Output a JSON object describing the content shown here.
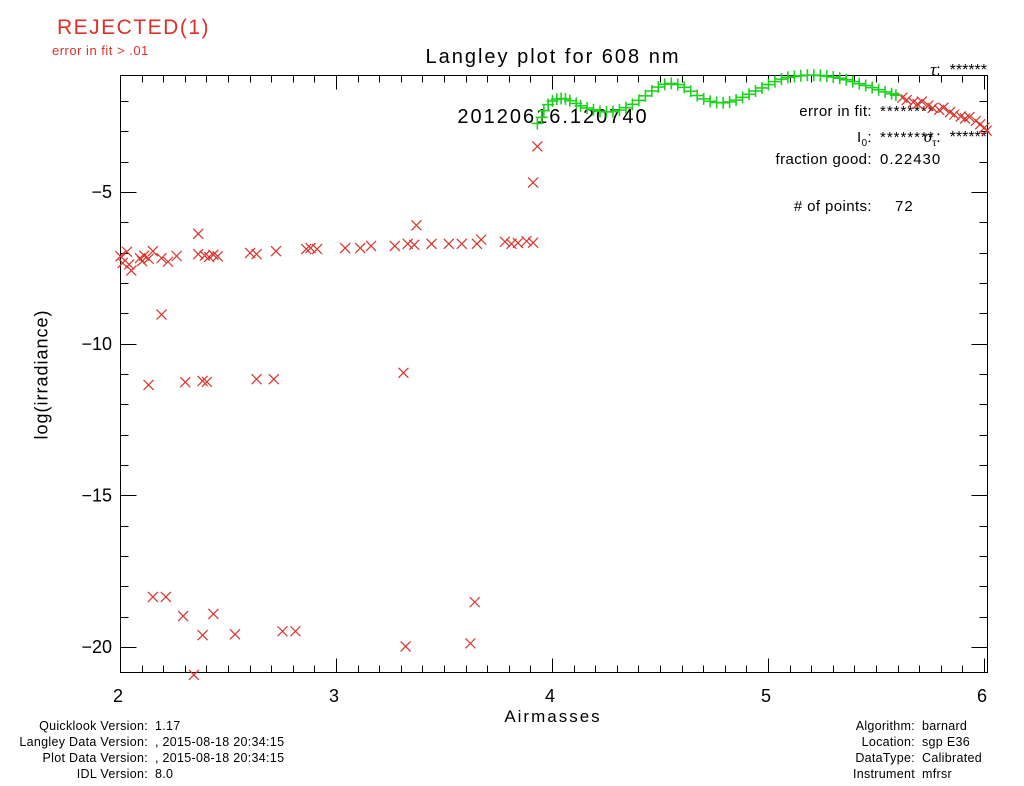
{
  "header": {
    "rejected_label": "REJECTED(1)",
    "rejected_reason": "error in fit > .01",
    "title_line1": "Langley plot for 608 nm",
    "title_line2": "20120616.120740"
  },
  "tau_block": {
    "tau_symbol": "τ",
    "tau_colon": ":  ",
    "tau_value": "******",
    "sigma_symbol": "σ",
    "sigma_sub": "τ",
    "sigma_colon": ":  ",
    "sigma_value": "******"
  },
  "stats": {
    "error_label": "error in fit:",
    "error_value": "********",
    "i0_main": "I",
    "i0_sub": "0",
    "i0_colon": ":",
    "i0_value": "********",
    "fraction_label": "fraction good:",
    "fraction_value": "0.22430",
    "points_label": "# of points:",
    "points_value": "72"
  },
  "footer_left": {
    "rows": [
      {
        "label": "Quicklook Version:",
        "value": "1.17"
      },
      {
        "label": "Langley Data Version:",
        "value": ", 2015-08-18 20:34:15"
      },
      {
        "label": "Plot Data Version:",
        "value": ", 2015-08-18 20:34:15"
      },
      {
        "label": "IDL Version:",
        "value": "8.0"
      }
    ]
  },
  "footer_right": {
    "rows": [
      {
        "label": "Algorithm:",
        "value": "barnard"
      },
      {
        "label": "Location:",
        "value": "sgp E36"
      },
      {
        "label": "DataType:",
        "value": "Calibrated"
      },
      {
        "label": "Instrument",
        "value": "mfrsr"
      }
    ]
  },
  "chart_data": {
    "type": "scatter",
    "title": "Langley plot for 608 nm 20120616.120740",
    "xlabel": "Airmasses",
    "ylabel": "log(irradiance)",
    "xlim": [
      2.0,
      6.014
    ],
    "ylim": [
      -20.82,
      -1.14
    ],
    "xticks": [
      2,
      3,
      4,
      5,
      6
    ],
    "x_minor_step": 0.1,
    "yticks": [
      -5,
      -10,
      -15,
      -20
    ],
    "y_minor_step": 1,
    "grid": false,
    "legend": "none",
    "axis_color": "#000000",
    "series": [
      {
        "name": "rejected-points",
        "marker": "x",
        "color": "#d8322a",
        "points": [
          [
            2.0,
            -7.1
          ],
          [
            2.01,
            -7.32
          ],
          [
            2.03,
            -6.95
          ],
          [
            2.04,
            -7.37
          ],
          [
            2.05,
            -7.57
          ],
          [
            2.09,
            -7.16
          ],
          [
            2.1,
            -7.26
          ],
          [
            2.11,
            -7.08
          ],
          [
            2.13,
            -7.18
          ],
          [
            2.15,
            -6.93
          ],
          [
            2.19,
            -7.16
          ],
          [
            2.22,
            -7.28
          ],
          [
            2.26,
            -7.09
          ],
          [
            2.36,
            -6.36
          ],
          [
            2.36,
            -7.03
          ],
          [
            2.39,
            -7.08
          ],
          [
            2.41,
            -7.12
          ],
          [
            2.43,
            -7.05
          ],
          [
            2.45,
            -7.1
          ],
          [
            2.6,
            -6.99
          ],
          [
            2.63,
            -7.03
          ],
          [
            2.72,
            -6.93
          ],
          [
            2.86,
            -6.86
          ],
          [
            2.88,
            -6.83
          ],
          [
            2.91,
            -6.86
          ],
          [
            3.04,
            -6.83
          ],
          [
            3.11,
            -6.83
          ],
          [
            3.16,
            -6.76
          ],
          [
            3.27,
            -6.76
          ],
          [
            3.33,
            -6.69
          ],
          [
            3.36,
            -6.72
          ],
          [
            3.37,
            -6.08
          ],
          [
            3.44,
            -6.69
          ],
          [
            3.52,
            -6.69
          ],
          [
            3.58,
            -6.69
          ],
          [
            3.65,
            -6.69
          ],
          [
            3.67,
            -6.55
          ],
          [
            3.78,
            -6.62
          ],
          [
            3.81,
            -6.69
          ],
          [
            3.84,
            -6.66
          ],
          [
            3.88,
            -6.6
          ],
          [
            3.91,
            -6.65
          ],
          [
            2.19,
            -9.02
          ],
          [
            2.13,
            -11.34
          ],
          [
            2.3,
            -11.25
          ],
          [
            2.38,
            -11.21
          ],
          [
            2.4,
            -11.24
          ],
          [
            2.63,
            -11.15
          ],
          [
            2.71,
            -11.15
          ],
          [
            3.31,
            -10.94
          ],
          [
            2.15,
            -18.33
          ],
          [
            2.21,
            -18.33
          ],
          [
            2.29,
            -18.96
          ],
          [
            2.43,
            -18.89
          ],
          [
            2.38,
            -19.59
          ],
          [
            2.53,
            -19.56
          ],
          [
            2.75,
            -19.46
          ],
          [
            2.81,
            -19.46
          ],
          [
            3.32,
            -19.96
          ],
          [
            3.62,
            -19.86
          ],
          [
            3.64,
            -18.5
          ],
          [
            2.34,
            -20.9
          ],
          [
            3.91,
            -4.67
          ],
          [
            3.93,
            -3.48
          ],
          [
            5.62,
            -1.87
          ],
          [
            5.64,
            -1.95
          ],
          [
            5.67,
            -2.02
          ],
          [
            5.69,
            -2.08
          ],
          [
            5.71,
            -2.0
          ],
          [
            5.74,
            -2.13
          ],
          [
            5.76,
            -2.21
          ],
          [
            5.79,
            -2.27
          ],
          [
            5.81,
            -2.2
          ],
          [
            5.84,
            -2.35
          ],
          [
            5.86,
            -2.43
          ],
          [
            5.89,
            -2.49
          ],
          [
            5.91,
            -2.56
          ],
          [
            5.93,
            -2.51
          ],
          [
            5.96,
            -2.64
          ],
          [
            5.98,
            -2.75
          ],
          [
            6.0,
            -2.86
          ],
          [
            6.01,
            -2.96
          ]
        ]
      },
      {
        "name": "good-points",
        "marker": "+",
        "color": "#1fd11f",
        "points": [
          [
            3.93,
            -2.72
          ],
          [
            3.95,
            -2.52
          ],
          [
            3.96,
            -2.3
          ],
          [
            3.98,
            -2.1
          ],
          [
            4.0,
            -1.98
          ],
          [
            4.02,
            -1.92
          ],
          [
            4.04,
            -1.9
          ],
          [
            4.06,
            -1.91
          ],
          [
            4.08,
            -1.97
          ],
          [
            4.11,
            -2.06
          ],
          [
            4.13,
            -2.14
          ],
          [
            4.16,
            -2.21
          ],
          [
            4.19,
            -2.27
          ],
          [
            4.22,
            -2.32
          ],
          [
            4.25,
            -2.34
          ],
          [
            4.28,
            -2.33
          ],
          [
            4.31,
            -2.28
          ],
          [
            4.34,
            -2.2
          ],
          [
            4.37,
            -2.09
          ],
          [
            4.4,
            -1.96
          ],
          [
            4.43,
            -1.81
          ],
          [
            4.46,
            -1.65
          ],
          [
            4.49,
            -1.52
          ],
          [
            4.52,
            -1.43
          ],
          [
            4.55,
            -1.4
          ],
          [
            4.58,
            -1.44
          ],
          [
            4.61,
            -1.53
          ],
          [
            4.64,
            -1.66
          ],
          [
            4.67,
            -1.8
          ],
          [
            4.7,
            -1.91
          ],
          [
            4.73,
            -1.99
          ],
          [
            4.76,
            -2.03
          ],
          [
            4.79,
            -2.04
          ],
          [
            4.82,
            -2.01
          ],
          [
            4.85,
            -1.95
          ],
          [
            4.88,
            -1.86
          ],
          [
            4.91,
            -1.76
          ],
          [
            4.94,
            -1.65
          ],
          [
            4.97,
            -1.55
          ],
          [
            5.0,
            -1.44
          ],
          [
            5.03,
            -1.34
          ],
          [
            5.06,
            -1.26
          ],
          [
            5.09,
            -1.2
          ],
          [
            5.12,
            -1.17
          ],
          [
            5.15,
            -1.15
          ],
          [
            5.18,
            -1.13
          ],
          [
            5.21,
            -1.13
          ],
          [
            5.24,
            -1.14
          ],
          [
            5.27,
            -1.16
          ],
          [
            5.3,
            -1.19
          ],
          [
            5.33,
            -1.23
          ],
          [
            5.36,
            -1.28
          ],
          [
            5.39,
            -1.34
          ],
          [
            5.42,
            -1.41
          ],
          [
            5.45,
            -1.47
          ],
          [
            5.48,
            -1.54
          ],
          [
            5.51,
            -1.61
          ],
          [
            5.54,
            -1.68
          ],
          [
            5.57,
            -1.74
          ],
          [
            5.59,
            -1.79
          ]
        ]
      }
    ]
  }
}
